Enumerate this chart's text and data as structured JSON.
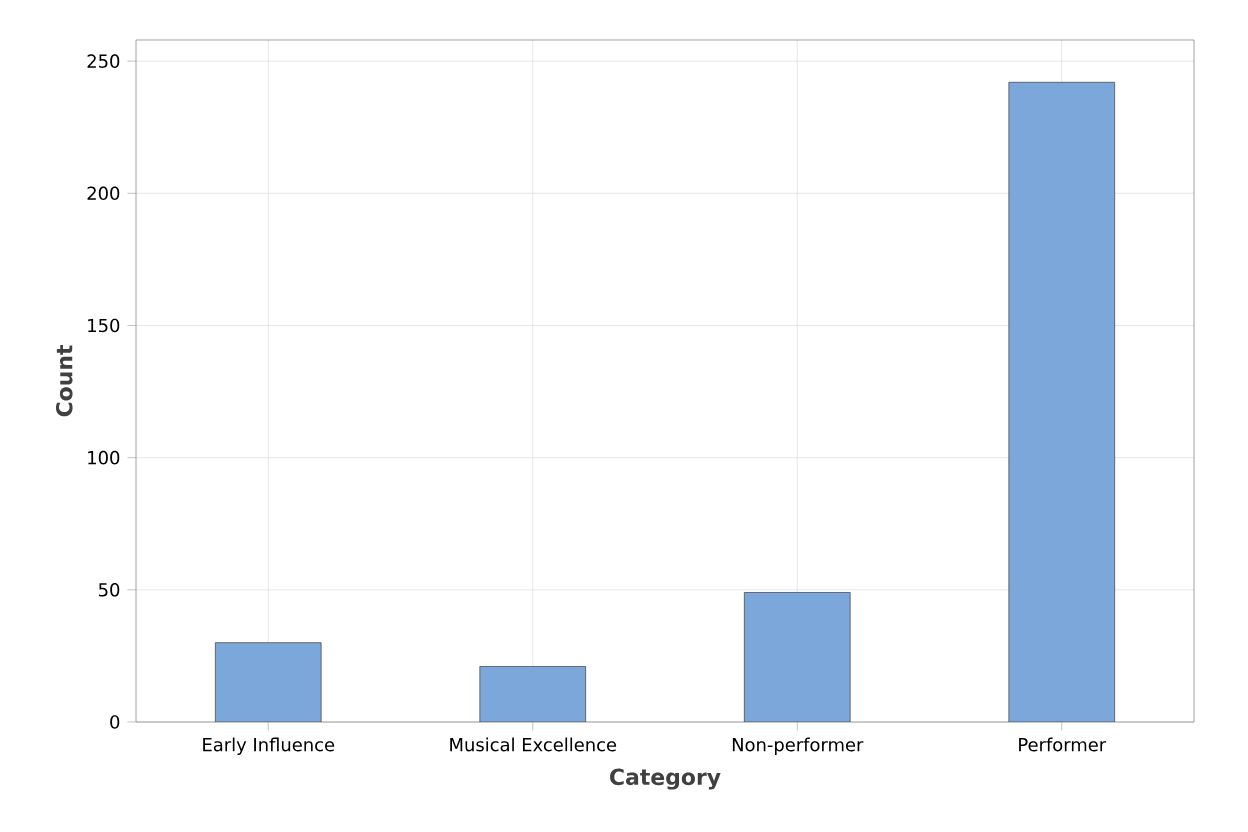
{
  "chart_data": {
    "type": "bar",
    "xlabel": "Category",
    "ylabel": "Count",
    "categories": [
      "Early Influence",
      "Musical Excellence",
      "Non-performer",
      "Performer"
    ],
    "values": [
      30,
      21,
      49,
      242
    ],
    "color": "#7ba7da",
    "ylim": [
      0,
      258
    ],
    "yticks": [
      0,
      50,
      100,
      150,
      200,
      250
    ],
    "grid": true
  }
}
